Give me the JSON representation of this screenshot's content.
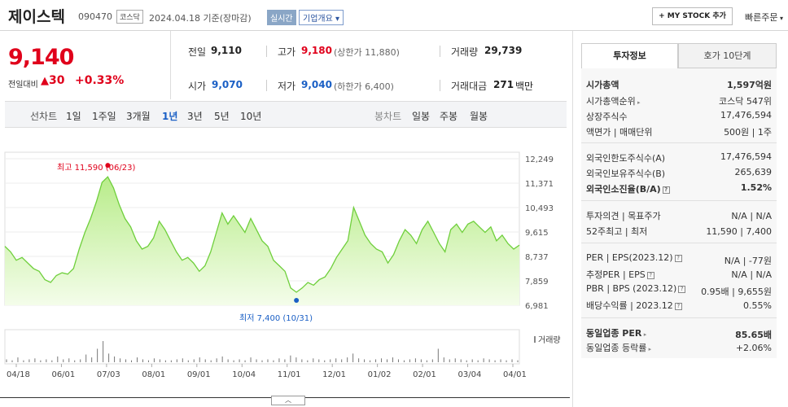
{
  "header": {
    "name": "제이스텍",
    "code": "090470",
    "market": "코스닥",
    "date_text": "2024.04.18 기준(장마감)",
    "realtime": "실시간",
    "overview": "기업개요",
    "mystock": "+ MY STOCK 추가",
    "quick_order": "빠른주문"
  },
  "price": {
    "current": "9,140",
    "change_label": "전일대비",
    "change": "30",
    "change_pct": "+0.33%"
  },
  "summary": {
    "prev_label": "전일",
    "prev": "9,110",
    "open_label": "시가",
    "open": "9,070",
    "high_label": "고가",
    "high": "9,180",
    "upper_limit": "(상한가 11,880)",
    "low_label": "저가",
    "low": "9,040",
    "lower_limit": "(하한가 6,400)",
    "volume_label": "거래량",
    "volume": "29,739",
    "amount_label": "거래대금",
    "amount": "271",
    "amount_unit": "백만"
  },
  "periods": {
    "line_label": "선차트",
    "items": [
      "1일",
      "1주일",
      "3개월",
      "1년",
      "3년",
      "5년",
      "10년"
    ],
    "candle_label": "봉차트",
    "candle_items": [
      "일봉",
      "주봉",
      "월봉"
    ]
  },
  "chart_data": {
    "type": "area",
    "y_ticks": [
      12249,
      11371,
      10493,
      9615,
      8737,
      7859,
      6981
    ],
    "x_ticks": [
      "04/18",
      "06/01",
      "07/03",
      "08/01",
      "09/01",
      "10/04",
      "11/01",
      "12/01",
      "01/02",
      "02/01",
      "03/04",
      "04/01"
    ],
    "values": [
      9100,
      8900,
      8600,
      8700,
      8500,
      8300,
      8200,
      7900,
      7800,
      8050,
      8150,
      8100,
      8300,
      9000,
      9600,
      10100,
      10700,
      11400,
      11600,
      11200,
      10600,
      10100,
      9800,
      9300,
      9000,
      9100,
      9400,
      10000,
      9700,
      9300,
      8900,
      8600,
      8700,
      8500,
      8200,
      8400,
      8900,
      9600,
      10300,
      9900,
      10200,
      9900,
      9600,
      10100,
      9700,
      9300,
      9100,
      8600,
      8400,
      8200,
      7600,
      7450,
      7600,
      7800,
      7700,
      7900,
      8000,
      8300,
      8700,
      9000,
      9300,
      10500,
      10000,
      9500,
      9200,
      9000,
      8900,
      8500,
      8800,
      9300,
      9700,
      9500,
      9200,
      9700,
      10000,
      9600,
      9200,
      8900,
      9700,
      9900,
      9600,
      9900,
      10000,
      9800,
      9600,
      9800,
      9300,
      9500,
      9200,
      9000,
      9140
    ],
    "high_label": "최고 11,590 (06/23)",
    "low_label": "최저 7,400 (10/31)",
    "volume_legend": "거래량",
    "volumes": [
      3,
      2,
      5,
      2,
      3,
      4,
      2,
      3,
      2,
      6,
      3,
      4,
      2,
      3,
      8,
      5,
      14,
      22,
      9,
      6,
      4,
      3,
      2,
      5,
      3,
      2,
      4,
      3,
      2,
      2,
      3,
      4,
      2,
      3,
      5,
      3,
      2,
      4,
      6,
      3,
      2,
      3,
      2,
      5,
      3,
      2,
      3,
      2,
      4,
      3,
      7,
      5,
      3,
      2,
      4,
      3,
      2,
      3,
      4,
      3,
      5,
      9,
      4,
      3,
      2,
      3,
      4,
      3,
      5,
      3,
      2,
      3,
      4,
      3,
      2,
      3,
      14,
      5,
      3,
      4,
      3,
      2,
      3,
      2,
      4,
      3,
      2,
      3,
      2,
      3,
      2
    ],
    "ylim": [
      6981,
      12249
    ]
  },
  "invest": {
    "tab_active": "투자정보",
    "tab_other": "호가 10단계",
    "rows": [
      {
        "label": "시가총액",
        "value": "1,597억원"
      },
      {
        "label": "시가총액순위",
        "value": "코스닥 547위"
      },
      {
        "label": "상장주식수",
        "value": "17,476,594"
      },
      {
        "label": "액면가 | 매매단위",
        "value": "500원 | 1주"
      },
      {
        "label": "외국인한도주식수(A)",
        "value": "17,476,594"
      },
      {
        "label": "외국인보유주식수(B)",
        "value": "265,639"
      },
      {
        "label": "외국인소진율(B/A)",
        "value": "1.52%"
      },
      {
        "label": "투자의견 | 목표주가",
        "value": "N/A | N/A"
      },
      {
        "label": "52주최고 | 최저",
        "value": "11,590 | 7,400"
      },
      {
        "label": "PER | EPS(2023.12)",
        "value": "N/A | -77원"
      },
      {
        "label": "추정PER | EPS",
        "value": "N/A | N/A"
      },
      {
        "label": "PBR | BPS (2023.12)",
        "value": "0.95배 | 9,655원"
      },
      {
        "label": "배당수익률 | 2023.12",
        "value": "0.55%"
      },
      {
        "label": "동일업종 PER",
        "value": "85.65배"
      },
      {
        "label": "동일업종 등락률",
        "value": "+2.06%"
      }
    ]
  }
}
